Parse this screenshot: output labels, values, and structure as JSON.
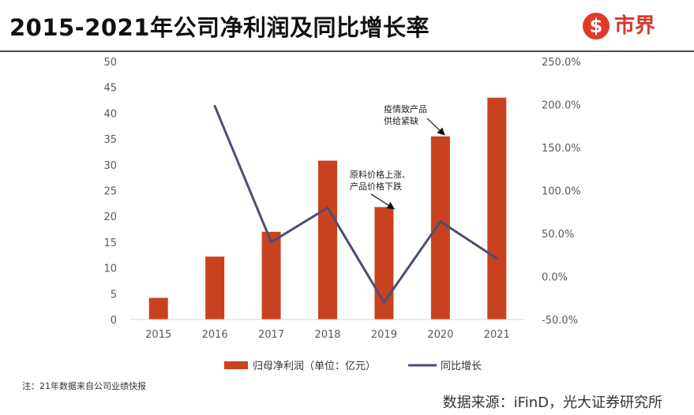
{
  "header": {
    "title": "2015-2021年公司净利润及同比增长率",
    "logo_badge": "$",
    "logo_text": "市界"
  },
  "colors": {
    "bar": "#c9421f",
    "line": "#4e4e72",
    "logo": "#e23a2a"
  },
  "chart_data": {
    "type": "bar",
    "title": "2015-2021年公司净利润及同比增长率",
    "categories": [
      "2015",
      "2016",
      "2017",
      "2018",
      "2019",
      "2020",
      "2021"
    ],
    "series": [
      {
        "name": "归母净利润（单位：亿元）",
        "type": "bar",
        "axis": "left",
        "values": [
          4.2,
          12.2,
          17.0,
          30.8,
          21.8,
          35.5,
          43.0
        ]
      },
      {
        "name": "同比增长",
        "type": "line",
        "axis": "right",
        "values": [
          null,
          198.0,
          40.0,
          80.0,
          -30.0,
          64.0,
          21.0
        ]
      }
    ],
    "y_left": {
      "ylim": [
        0,
        50
      ],
      "ticks": [
        "0",
        "5",
        "10",
        "15",
        "20",
        "25",
        "30",
        "35",
        "40",
        "45",
        "50"
      ]
    },
    "y_right": {
      "ylim": [
        -50,
        250
      ],
      "ticks": [
        "-50.0%",
        "0.0%",
        "50.0%",
        "100.0%",
        "150.0%",
        "200.0%",
        "250.0%"
      ]
    },
    "grid": false,
    "legend_position": "bottom",
    "annotations": [
      {
        "lines": [
          "原料价格上涨、",
          "产品价格下跌"
        ],
        "category": "2019"
      },
      {
        "lines": [
          "疫情致产品",
          "供给紧缺"
        ],
        "category": "2020"
      }
    ]
  },
  "footer": {
    "note": "注：21年数据来自公司业绩快报",
    "source": "数据来源：iFinD，光大证券研究所"
  }
}
